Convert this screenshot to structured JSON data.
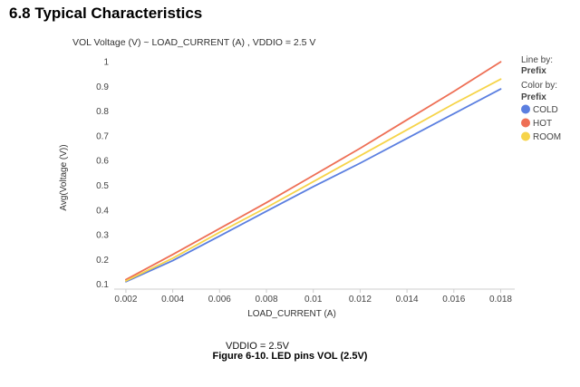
{
  "heading": "6.8 Typical Characteristics",
  "figure_caption": "Figure 6-10. LED pins VOL (2.5V)",
  "chart_data": {
    "type": "line",
    "title": "VOL Voltage (V) ~ LOAD_CURRENT (A) , VDDIO = 2.5 V",
    "xlabel": "LOAD_CURRENT (A)",
    "ylabel": "Avg(Voltage (V))",
    "xlim": [
      0.0015,
      0.0186
    ],
    "ylim": [
      0.08,
      1.03
    ],
    "x_ticks": [
      0.002,
      0.004,
      0.006,
      0.008,
      0.01,
      0.012,
      0.014,
      0.016,
      0.018
    ],
    "x_tick_labels": [
      "0.002",
      "0.004",
      "0.006",
      "0.008",
      "0.01",
      "0.012",
      "0.014",
      "0.016",
      "0.018"
    ],
    "y_ticks": [
      0.1,
      0.2,
      0.3,
      0.4,
      0.5,
      0.6,
      0.7,
      0.8,
      0.9,
      1
    ],
    "y_tick_labels": [
      "0.1",
      "0.2",
      "0.3",
      "0.4",
      "0.5",
      "0.6",
      "0.7",
      "0.8",
      "0.9",
      "1"
    ],
    "grid": false,
    "x": [
      0.002,
      0.004,
      0.006,
      0.008,
      0.01,
      0.012,
      0.014,
      0.016,
      0.018
    ],
    "series": [
      {
        "name": "COLD",
        "color": "#5b7fe0",
        "values": [
          0.11,
          0.195,
          0.295,
          0.395,
          0.495,
          0.59,
          0.69,
          0.79,
          0.89
        ]
      },
      {
        "name": "HOT",
        "color": "#ee6f55",
        "values": [
          0.118,
          0.22,
          0.325,
          0.43,
          0.54,
          0.65,
          0.765,
          0.88,
          1.0
        ]
      },
      {
        "name": "ROOM",
        "color": "#f6d44a",
        "values": [
          0.113,
          0.205,
          0.31,
          0.41,
          0.515,
          0.62,
          0.725,
          0.83,
          0.93
        ]
      }
    ],
    "legend": {
      "placement": "right",
      "line_by_label": "Line by:",
      "line_by_value": "Prefix",
      "color_by_label": "Color by:",
      "color_by_value": "Prefix"
    },
    "annotation": "VDDIO = 2.5V"
  }
}
